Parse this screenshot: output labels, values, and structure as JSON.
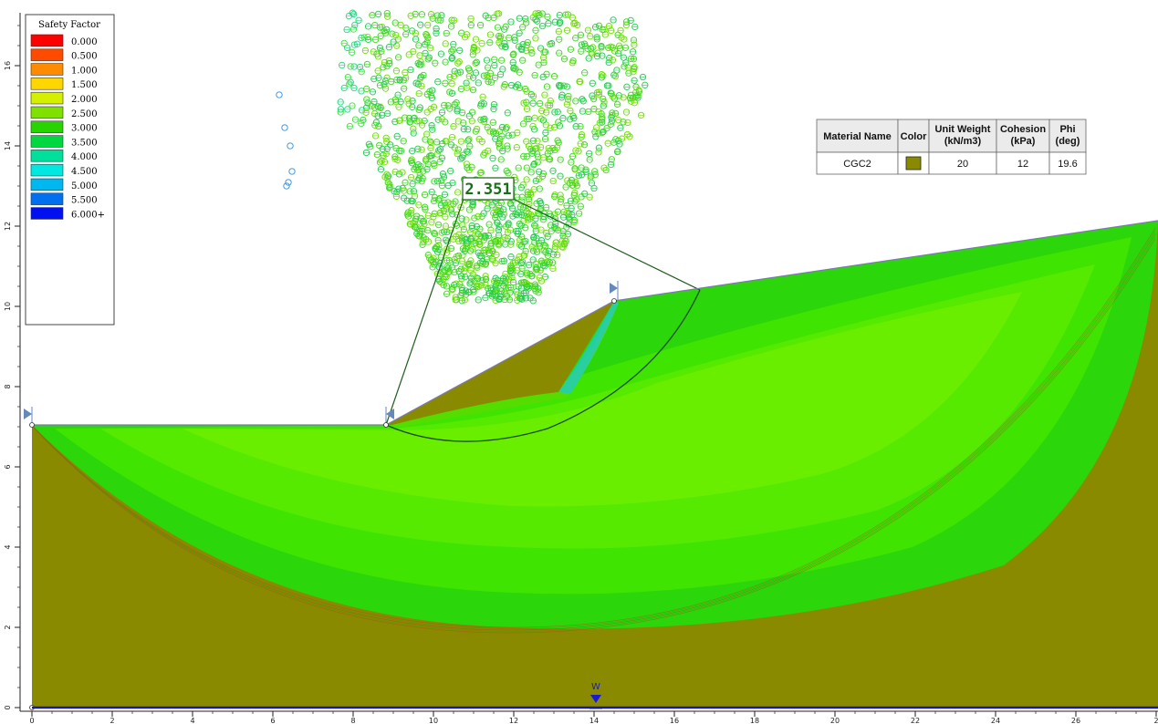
{
  "legend": {
    "title": "Safety Factor",
    "entries": [
      {
        "label": "0.000",
        "color": "#ff0000"
      },
      {
        "label": "0.500",
        "color": "#ff4a00"
      },
      {
        "label": "1.000",
        "color": "#ff8c00"
      },
      {
        "label": "1.500",
        "color": "#ffd700"
      },
      {
        "label": "2.000",
        "color": "#d4f000"
      },
      {
        "label": "2.500",
        "color": "#80e000"
      },
      {
        "label": "3.000",
        "color": "#28d400"
      },
      {
        "label": "3.500",
        "color": "#00d840"
      },
      {
        "label": "4.000",
        "color": "#00e09a"
      },
      {
        "label": "4.500",
        "color": "#00e8e0"
      },
      {
        "label": "5.000",
        "color": "#00b8f0"
      },
      {
        "label": "5.500",
        "color": "#0070f0"
      },
      {
        "label": "6.000+",
        "color": "#0010f0"
      }
    ],
    "legend_extra_swatch": "#ff0000"
  },
  "materials_table": {
    "headers": [
      "Material Name",
      "Color",
      "Unit Weight (kN/m3)",
      "Cohesion (kPa)",
      "Phi (deg)"
    ],
    "header_lines": [
      [
        "Material Name"
      ],
      [
        "Color"
      ],
      [
        "Unit Weight",
        "(kN/m3)"
      ],
      [
        "Cohesion",
        "(kPa)"
      ],
      [
        "Phi",
        "(deg)"
      ]
    ],
    "rows": [
      {
        "name": "CGC2",
        "color": "#8a8a00",
        "unit_weight": "20",
        "cohesion": "12",
        "phi": "19.6"
      }
    ]
  },
  "critical_fs": "2.351",
  "water_marker": "W",
  "colors": {
    "soil": "#8a8a00",
    "slip_surface_green": "#44ee00",
    "slip_surface_dark": "#2bd400",
    "critical_line": "#1e5e1e",
    "water_line": "#1a1aa0",
    "axis": "#222222"
  },
  "axes": {
    "x_ticks": [
      "0",
      "2",
      "4",
      "6",
      "8",
      "10",
      "12",
      "14",
      "16",
      "18",
      "20",
      "22",
      "24",
      "26",
      "2"
    ],
    "y_ticks": [
      "0",
      "2",
      "4",
      "6",
      "8",
      "10",
      "12",
      "14",
      "16"
    ]
  },
  "geometry_data": {
    "description_units": "model coordinates (m)",
    "ground_profile": [
      [
        0,
        0
      ],
      [
        0,
        7
      ],
      [
        8.9,
        7
      ],
      [
        14.5,
        10.1
      ],
      [
        28,
        12.2
      ],
      [
        28,
        0
      ]
    ],
    "critical_center": [
      12.4,
      13.1
    ],
    "critical_radius": 6.4,
    "critical_entry": [
      8.9,
      7
    ],
    "critical_exit": [
      16.7,
      10.4
    ]
  }
}
